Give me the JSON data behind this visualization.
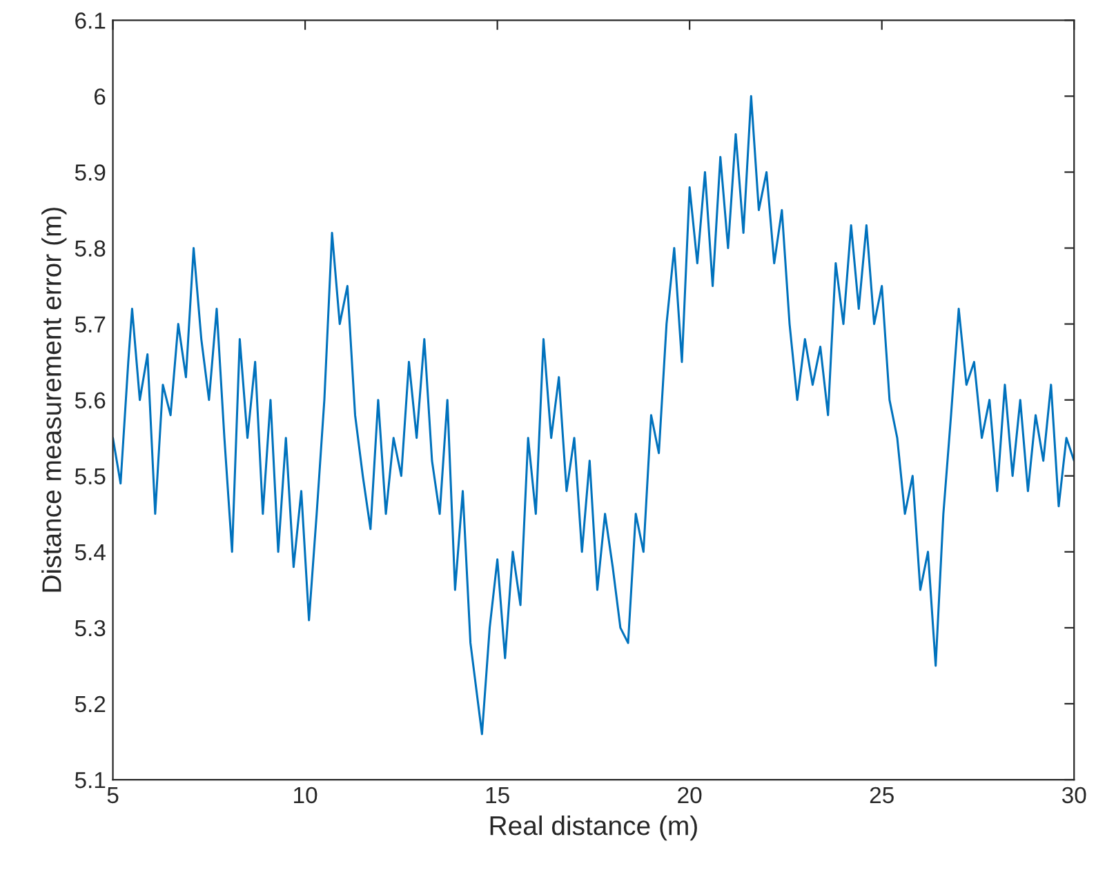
{
  "chart_data": {
    "type": "line",
    "xlabel": "Real distance (m)",
    "ylabel": "Distance measurement error (m)",
    "x": [
      5.0,
      5.2,
      5.4,
      5.5,
      5.7,
      5.9,
      6.1,
      6.3,
      6.5,
      6.7,
      6.9,
      7.1,
      7.3,
      7.5,
      7.7,
      7.9,
      8.1,
      8.3,
      8.5,
      8.7,
      8.9,
      9.1,
      9.3,
      9.5,
      9.7,
      9.9,
      10.1,
      10.3,
      10.5,
      10.7,
      10.9,
      11.1,
      11.3,
      11.5,
      11.7,
      11.9,
      12.1,
      12.3,
      12.5,
      12.7,
      12.9,
      13.1,
      13.3,
      13.5,
      13.7,
      13.9,
      14.1,
      14.3,
      14.5,
      14.6,
      14.8,
      15.0,
      15.2,
      15.4,
      15.6,
      15.8,
      16.0,
      16.2,
      16.4,
      16.6,
      16.8,
      17.0,
      17.2,
      17.4,
      17.6,
      17.8,
      18.0,
      18.2,
      18.4,
      18.6,
      18.8,
      19.0,
      19.2,
      19.4,
      19.6,
      19.8,
      20.0,
      20.2,
      20.4,
      20.6,
      20.8,
      21.0,
      21.2,
      21.4,
      21.6,
      21.8,
      22.0,
      22.2,
      22.4,
      22.6,
      22.8,
      23.0,
      23.2,
      23.4,
      23.6,
      23.8,
      24.0,
      24.2,
      24.4,
      24.6,
      24.8,
      25.0,
      25.2,
      25.4,
      25.6,
      25.8,
      26.0,
      26.2,
      26.4,
      26.6,
      26.8,
      27.0,
      27.2,
      27.4,
      27.6,
      27.8,
      28.0,
      28.2,
      28.4,
      28.6,
      28.8,
      29.0,
      29.2,
      29.4,
      29.6,
      29.8,
      30.0
    ],
    "series": [
      {
        "color": "#0072bd",
        "values": [
          5.55,
          5.49,
          5.65,
          5.72,
          5.6,
          5.66,
          5.45,
          5.62,
          5.58,
          5.7,
          5.63,
          5.8,
          5.68,
          5.6,
          5.72,
          5.55,
          5.4,
          5.68,
          5.55,
          5.65,
          5.45,
          5.6,
          5.4,
          5.55,
          5.38,
          5.48,
          5.31,
          5.45,
          5.6,
          5.82,
          5.7,
          5.75,
          5.58,
          5.5,
          5.43,
          5.6,
          5.45,
          5.55,
          5.5,
          5.65,
          5.55,
          5.68,
          5.52,
          5.45,
          5.6,
          5.35,
          5.48,
          5.28,
          5.2,
          5.16,
          5.3,
          5.39,
          5.26,
          5.4,
          5.33,
          5.55,
          5.45,
          5.68,
          5.55,
          5.63,
          5.48,
          5.55,
          5.4,
          5.52,
          5.35,
          5.45,
          5.38,
          5.3,
          5.28,
          5.45,
          5.4,
          5.58,
          5.53,
          5.7,
          5.8,
          5.65,
          5.88,
          5.78,
          5.9,
          5.75,
          5.92,
          5.8,
          5.95,
          5.82,
          6.0,
          5.85,
          5.9,
          5.78,
          5.85,
          5.7,
          5.6,
          5.68,
          5.62,
          5.67,
          5.58,
          5.78,
          5.7,
          5.83,
          5.72,
          5.83,
          5.7,
          5.75,
          5.6,
          5.55,
          5.45,
          5.5,
          5.35,
          5.4,
          5.25,
          5.45,
          5.58,
          5.72,
          5.62,
          5.65,
          5.55,
          5.6,
          5.48,
          5.62,
          5.5,
          5.6,
          5.48,
          5.58,
          5.52,
          5.62,
          5.46,
          5.55,
          5.52
        ]
      }
    ],
    "xlim": [
      5,
      30
    ],
    "xticks": [
      5,
      10,
      15,
      20,
      25,
      30
    ],
    "ylim": [
      5.1,
      6.1
    ],
    "yticks": [
      5.1,
      5.2,
      5.3,
      5.4,
      5.5,
      5.6,
      5.7,
      5.8,
      5.9,
      6,
      6.1
    ],
    "grid": false,
    "legend": false
  }
}
